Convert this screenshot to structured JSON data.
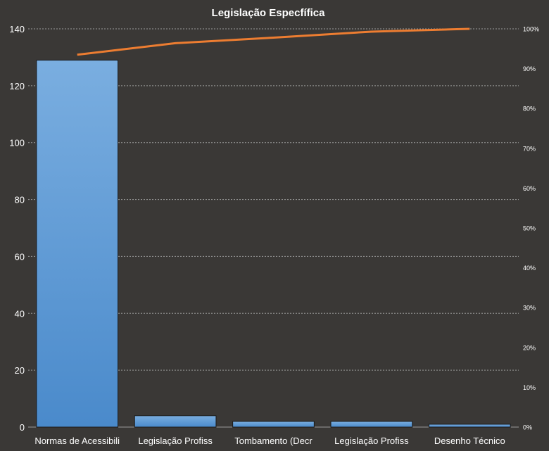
{
  "chart_data": {
    "type": "bar",
    "title": "Legislação  Especfífica",
    "categories": [
      "Normas de Acessibili",
      "Legislação Profiss",
      "Tombamento  (Decr",
      "Legislação Profiss",
      "Desenho Técnico"
    ],
    "values": [
      129,
      4,
      2,
      2,
      1
    ],
    "ylim": [
      0,
      140
    ],
    "yticks": [
      0,
      20,
      40,
      60,
      80,
      100,
      120,
      140
    ],
    "y2lim": [
      0,
      100
    ],
    "y2ticks": [
      "0%",
      "10%",
      "20%",
      "30%",
      "40%",
      "50%",
      "60%",
      "70%",
      "80%",
      "90%",
      "100%"
    ],
    "cumulative_percent": [
      93.5,
      96.4,
      97.8,
      99.3,
      100
    ],
    "grid": true,
    "colors": {
      "background": "#3a3836",
      "bar_fill": "#5b9bd5",
      "bar_light": "#7aaee0",
      "bar_dark": "#4a8acb",
      "line": "#ed7d31",
      "grid": "#9a9a9a",
      "text": "#ffffff"
    }
  }
}
